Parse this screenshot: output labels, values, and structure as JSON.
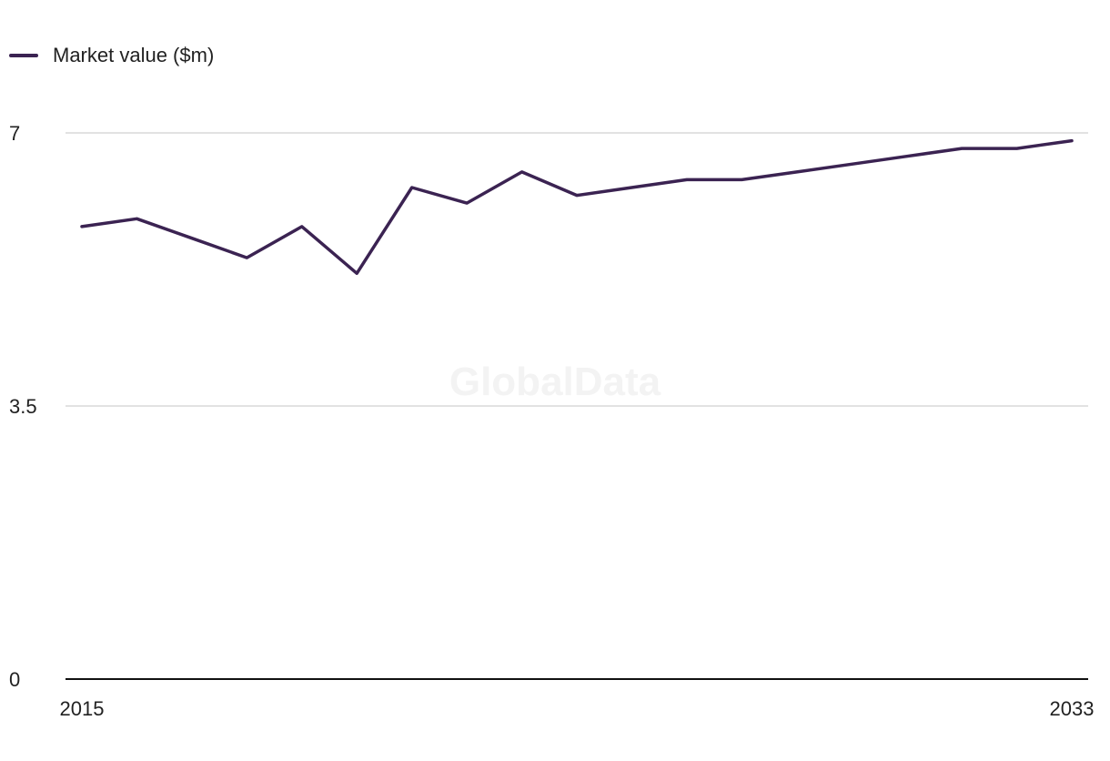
{
  "watermark": "GlobalData",
  "chart_data": {
    "type": "line",
    "title": "",
    "xlabel": "",
    "ylabel": "",
    "x": [
      2015,
      2016,
      2017,
      2018,
      2019,
      2020,
      2021,
      2022,
      2023,
      2024,
      2025,
      2026,
      2027,
      2028,
      2029,
      2030,
      2031,
      2032,
      2033
    ],
    "series": [
      {
        "name": "Market value ($m)",
        "color": "#3b2352",
        "values": [
          5.8,
          5.9,
          5.65,
          5.4,
          5.8,
          5.2,
          6.3,
          6.1,
          6.5,
          6.2,
          6.3,
          6.4,
          6.4,
          6.5,
          6.6,
          6.7,
          6.8,
          6.8,
          6.9
        ]
      }
    ],
    "ylim": [
      0,
      7
    ],
    "yticks": [
      "0",
      "3.5",
      "7"
    ],
    "ytick_values": [
      0,
      3.5,
      7
    ],
    "xtick_labels": [
      "2015",
      "2033"
    ],
    "xtick_values": [
      2015,
      2033
    ],
    "grid": true,
    "legend": "top-left"
  }
}
